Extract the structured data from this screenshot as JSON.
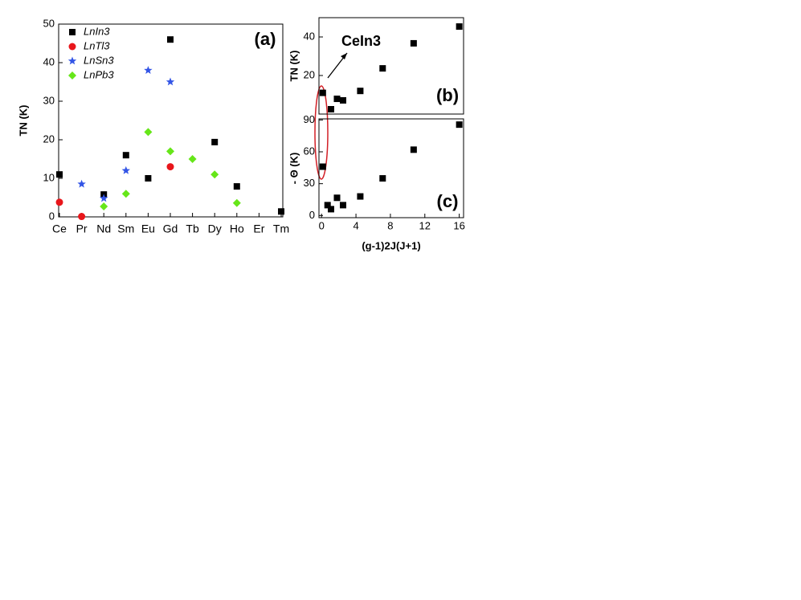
{
  "chart_data": [
    {
      "type": "scatter",
      "panel_label": "(a)",
      "ylabel": "TN (K)",
      "categories": [
        "Ce",
        "Pr",
        "Nd",
        "Sm",
        "Eu",
        "Gd",
        "Tb",
        "Dy",
        "Ho",
        "Er",
        "Tm"
      ],
      "ylim": [
        0,
        50
      ],
      "yticks": [
        0,
        10,
        20,
        30,
        40,
        50
      ],
      "series": [
        {
          "name": "LnIn3",
          "color": "#000000",
          "marker": "square",
          "values": [
            11,
            null,
            5.8,
            16,
            10,
            46,
            null,
            19.4,
            7.9,
            null,
            1.4
          ]
        },
        {
          "name": "LnTl3",
          "color": "#e8161b",
          "marker": "circle",
          "values": [
            3.8,
            0.1,
            null,
            null,
            null,
            13,
            null,
            null,
            null,
            null,
            null
          ]
        },
        {
          "name": "LnSn3",
          "color": "#3355e6",
          "marker": "star",
          "values": [
            null,
            8.5,
            4.8,
            12,
            38,
            35,
            null,
            null,
            null,
            null,
            null
          ]
        },
        {
          "name": "LnPb3",
          "color": "#66e619",
          "marker": "diamond",
          "values": [
            null,
            null,
            2.7,
            6,
            22,
            17,
            15,
            11,
            3.6,
            null,
            null
          ]
        }
      ]
    },
    {
      "type": "scatter",
      "panel_label": "(b)",
      "ylabel": "TN (K)",
      "annotation": "CeIn3",
      "xlim": [
        -0.3,
        16.5
      ],
      "ylim": [
        0,
        50
      ],
      "yticks": [
        20,
        40
      ],
      "x": [
        0.15,
        1.1,
        1.8,
        2.5,
        4.5,
        7.1,
        10.7,
        16
      ],
      "values": [
        11,
        2.5,
        7.9,
        7.1,
        12,
        23.7,
        36.7,
        45.4
      ],
      "color": "#000000",
      "marker": "square"
    },
    {
      "type": "scatter",
      "panel_label": "(c)",
      "ylabel": "- Θ (K)",
      "xlabel": "(g-1)2J(J+1)",
      "xlim": [
        -0.3,
        16.5
      ],
      "xticks": [
        0,
        4,
        8,
        12,
        16
      ],
      "ylim": [
        -2,
        91
      ],
      "yticks": [
        0,
        30,
        60,
        90
      ],
      "x": [
        0.15,
        0.7,
        1.1,
        1.8,
        2.5,
        4.5,
        7.1,
        10.7,
        16
      ],
      "values": [
        46,
        9.8,
        6,
        16.7,
        9.8,
        18,
        35,
        62,
        85.6
      ],
      "color": "#000000",
      "marker": "square"
    }
  ]
}
